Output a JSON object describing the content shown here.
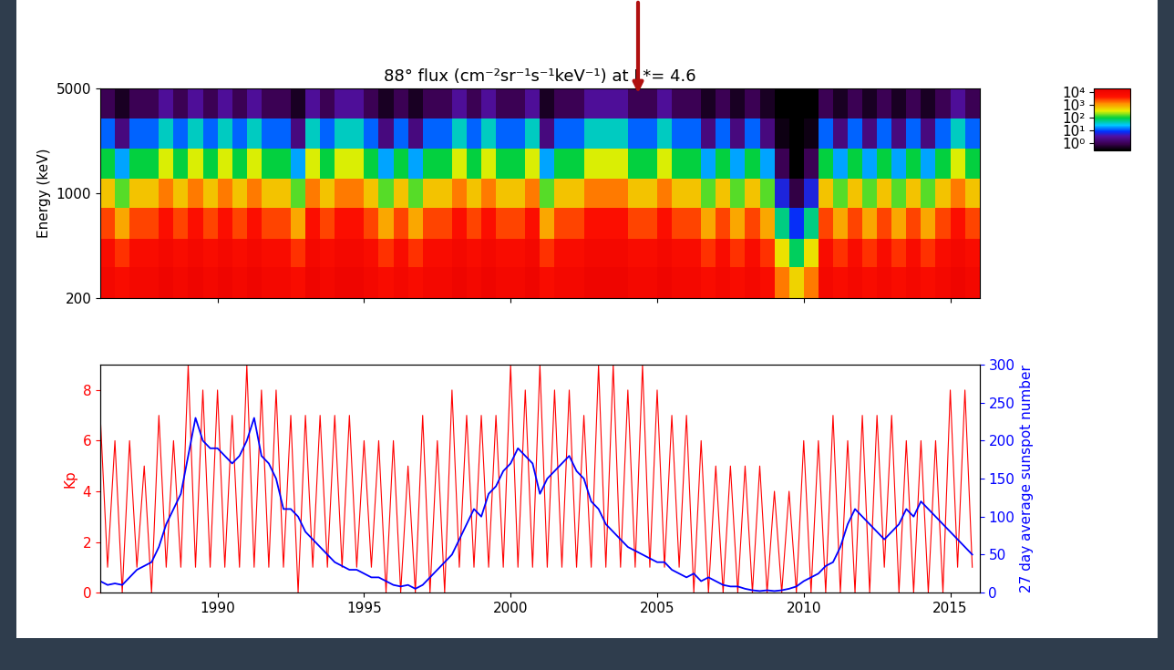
{
  "chart_data": [
    {
      "type": "heatmap",
      "title": "88° flux (cm⁻²sr⁻¹s⁻¹keV⁻¹) at L*= 4.6",
      "ylabel": "Energy (keV)",
      "log": "y",
      "tick_labels": "y",
      "xlim": [
        1986,
        2016
      ],
      "xticks": [
        1990,
        1995,
        2000,
        2005,
        2010,
        2015
      ],
      "ylim": [
        200,
        5000
      ],
      "yticks": [
        200,
        1000,
        5000
      ],
      "x_edges": [
        1986.0,
        1986.5,
        1987.0,
        1987.5,
        1988.0,
        1988.5,
        1989.0,
        1989.5,
        1990.0,
        1990.5,
        1991.0,
        1991.5,
        1992.0,
        1992.5,
        1993.0,
        1993.5,
        1994.0,
        1994.5,
        1995.0,
        1995.5,
        1996.0,
        1996.5,
        1997.0,
        1997.5,
        1998.0,
        1998.5,
        1999.0,
        1999.5,
        2000.0,
        2000.5,
        2001.0,
        2001.5,
        2002.0,
        2002.5,
        2003.0,
        2003.5,
        2004.0,
        2004.5,
        2005.0,
        2005.5,
        2006.0,
        2006.5,
        2007.0,
        2007.5,
        2008.0,
        2008.5,
        2009.0,
        2009.5,
        2010.0,
        2010.5,
        2011.0,
        2011.5,
        2012.0,
        2012.5,
        2013.0,
        2013.5,
        2014.0,
        2014.5,
        2015.0,
        2015.5,
        2016.0
      ],
      "y_edges": [
        200,
        320,
        500,
        800,
        1260,
        2000,
        3160,
        5000
      ],
      "cells": [
        [
          9000,
          6000,
          2500,
          600,
          100,
          12,
          1
        ],
        [
          6000,
          3000,
          900,
          150,
          20,
          2,
          0.5
        ],
        [
          9000,
          6000,
          2500,
          600,
          100,
          12,
          1
        ],
        [
          9000,
          6000,
          2500,
          600,
          100,
          12,
          1
        ],
        [
          12000,
          9000,
          5000,
          1500,
          300,
          40,
          3
        ],
        [
          9000,
          6000,
          2500,
          600,
          100,
          12,
          1
        ],
        [
          12000,
          9000,
          5000,
          1500,
          300,
          40,
          3
        ],
        [
          9000,
          6000,
          2500,
          600,
          100,
          12,
          1
        ],
        [
          12000,
          9000,
          5000,
          1500,
          300,
          40,
          3
        ],
        [
          9000,
          6000,
          2500,
          600,
          100,
          12,
          1
        ],
        [
          12000,
          9000,
          5000,
          1500,
          300,
          40,
          3
        ],
        [
          9000,
          6000,
          2500,
          600,
          100,
          12,
          1
        ],
        [
          9000,
          6000,
          2500,
          600,
          100,
          12,
          1
        ],
        [
          6000,
          3000,
          900,
          150,
          20,
          2,
          0.5
        ],
        [
          12000,
          9000,
          5000,
          1500,
          300,
          40,
          3
        ],
        [
          9000,
          6000,
          2500,
          600,
          100,
          12,
          1
        ],
        [
          12000,
          9000,
          5000,
          1500,
          300,
          40,
          3
        ],
        [
          12000,
          9000,
          5000,
          1500,
          300,
          40,
          3
        ],
        [
          9000,
          6000,
          2500,
          600,
          100,
          12,
          1
        ],
        [
          6000,
          3000,
          900,
          150,
          20,
          2,
          0.5
        ],
        [
          9000,
          6000,
          2500,
          600,
          100,
          12,
          1
        ],
        [
          6000,
          3000,
          900,
          150,
          20,
          2,
          0.5
        ],
        [
          9000,
          6000,
          2500,
          600,
          100,
          12,
          1
        ],
        [
          9000,
          6000,
          2500,
          600,
          100,
          12,
          1
        ],
        [
          12000,
          9000,
          5000,
          1500,
          300,
          40,
          3
        ],
        [
          9000,
          6000,
          2500,
          600,
          100,
          12,
          1
        ],
        [
          12000,
          9000,
          5000,
          1500,
          300,
          40,
          3
        ],
        [
          9000,
          6000,
          2500,
          600,
          100,
          12,
          1
        ],
        [
          9000,
          6000,
          2500,
          600,
          100,
          12,
          1
        ],
        [
          12000,
          9000,
          5000,
          1500,
          300,
          40,
          3
        ],
        [
          6000,
          3000,
          900,
          150,
          20,
          2,
          0.5
        ],
        [
          9000,
          6000,
          2500,
          600,
          100,
          12,
          1
        ],
        [
          9000,
          6000,
          2500,
          600,
          100,
          12,
          1
        ],
        [
          12000,
          9000,
          5000,
          1500,
          300,
          40,
          3
        ],
        [
          12000,
          9000,
          5000,
          1500,
          300,
          40,
          3
        ],
        [
          12000,
          9000,
          5000,
          1500,
          300,
          40,
          3
        ],
        [
          9000,
          6000,
          2500,
          600,
          100,
          12,
          1
        ],
        [
          9000,
          6000,
          2500,
          600,
          100,
          12,
          1
        ],
        [
          12000,
          9000,
          5000,
          1500,
          300,
          40,
          3
        ],
        [
          9000,
          6000,
          2500,
          600,
          100,
          12,
          1
        ],
        [
          9000,
          6000,
          2500,
          600,
          100,
          12,
          1
        ],
        [
          6000,
          3000,
          900,
          150,
          20,
          2,
          0.5
        ],
        [
          9000,
          6000,
          2500,
          600,
          100,
          12,
          1
        ],
        [
          6000,
          3000,
          900,
          150,
          20,
          2,
          0.5
        ],
        [
          9000,
          6000,
          2500,
          600,
          100,
          12,
          1
        ],
        [
          6000,
          3000,
          900,
          150,
          20,
          2,
          0.5
        ],
        [
          1500,
          400,
          60,
          6,
          1,
          0.4,
          0.3
        ],
        [
          500,
          80,
          8,
          0.8,
          0.3,
          0.3,
          0.3
        ],
        [
          1500,
          400,
          60,
          6,
          1,
          0.4,
          0.3
        ],
        [
          9000,
          6000,
          2500,
          600,
          100,
          12,
          1
        ],
        [
          6000,
          3000,
          900,
          150,
          20,
          2,
          0.5
        ],
        [
          9000,
          6000,
          2500,
          600,
          100,
          12,
          1
        ],
        [
          6000,
          3000,
          900,
          150,
          20,
          2,
          0.5
        ],
        [
          9000,
          6000,
          2500,
          600,
          100,
          12,
          1
        ],
        [
          6000,
          3000,
          900,
          150,
          20,
          2,
          0.5
        ],
        [
          9000,
          6000,
          2500,
          600,
          100,
          12,
          1
        ],
        [
          6000,
          3000,
          900,
          150,
          20,
          2,
          0.5
        ],
        [
          9000,
          6000,
          2500,
          600,
          100,
          12,
          1
        ],
        [
          12000,
          9000,
          5000,
          1500,
          300,
          40,
          3
        ],
        [
          9000,
          6000,
          2500,
          600,
          100,
          12,
          1
        ]
      ],
      "colorbar_lim": [
        0.3,
        20000
      ],
      "colorbar_ticks": [
        {
          "value": 1,
          "label": "10⁰"
        },
        {
          "value": 10,
          "label": "10¹"
        },
        {
          "value": 100,
          "label": "10²"
        },
        {
          "value": 1000,
          "label": "10³"
        },
        {
          "value": 10000,
          "label": "10⁴"
        }
      ]
    },
    {
      "type": "line",
      "xlim": [
        1986,
        2016
      ],
      "xticks": [
        1990,
        1995,
        2000,
        2005,
        2010,
        2015
      ],
      "ylim": [
        0,
        9
      ],
      "yticks": [
        0,
        2,
        4,
        6,
        8
      ],
      "y2lim": [
        0,
        300
      ],
      "y2ticks": [
        0,
        50,
        100,
        150,
        200,
        250,
        300
      ],
      "x": [
        1986.0,
        1986.25,
        1986.5,
        1986.75,
        1987.0,
        1987.25,
        1987.5,
        1987.75,
        1988.0,
        1988.25,
        1988.5,
        1988.75,
        1989.0,
        1989.25,
        1989.5,
        1989.75,
        1990.0,
        1990.25,
        1990.5,
        1990.75,
        1991.0,
        1991.25,
        1991.5,
        1991.75,
        1992.0,
        1992.25,
        1992.5,
        1992.75,
        1993.0,
        1993.25,
        1993.5,
        1993.75,
        1994.0,
        1994.25,
        1994.5,
        1994.75,
        1995.0,
        1995.25,
        1995.5,
        1995.75,
        1996.0,
        1996.25,
        1996.5,
        1996.75,
        1997.0,
        1997.25,
        1997.5,
        1997.75,
        1998.0,
        1998.25,
        1998.5,
        1998.75,
        1999.0,
        1999.25,
        1999.5,
        1999.75,
        2000.0,
        2000.25,
        2000.5,
        2000.75,
        2001.0,
        2001.25,
        2001.5,
        2001.75,
        2002.0,
        2002.25,
        2002.5,
        2002.75,
        2003.0,
        2003.25,
        2003.5,
        2003.75,
        2004.0,
        2004.25,
        2004.5,
        2004.75,
        2005.0,
        2005.25,
        2005.5,
        2005.75,
        2006.0,
        2006.25,
        2006.5,
        2006.75,
        2007.0,
        2007.25,
        2007.5,
        2007.75,
        2008.0,
        2008.25,
        2008.5,
        2008.75,
        2009.0,
        2009.25,
        2009.5,
        2009.75,
        2010.0,
        2010.25,
        2010.5,
        2010.75,
        2011.0,
        2011.25,
        2011.5,
        2011.75,
        2012.0,
        2012.25,
        2012.5,
        2012.75,
        2013.0,
        2013.25,
        2013.5,
        2013.75,
        2014.0,
        2014.25,
        2014.5,
        2014.75,
        2015.0,
        2015.25,
        2015.5,
        2015.75
      ],
      "series": [
        {
          "name": "Kp",
          "color": "#ff0000",
          "values": [
            7,
            1,
            6,
            0,
            6,
            1,
            5,
            0,
            7,
            1,
            6,
            1,
            9,
            1,
            8,
            1,
            8,
            1,
            7,
            1,
            9,
            1,
            8,
            1,
            8,
            1,
            7,
            0,
            7,
            1,
            7,
            1,
            7,
            1,
            7,
            1,
            6,
            1,
            6,
            0,
            6,
            0,
            5,
            0,
            7,
            0,
            6,
            0,
            8,
            1,
            7,
            1,
            7,
            1,
            7,
            1,
            9,
            1,
            8,
            1,
            9,
            1,
            8,
            1,
            8,
            1,
            7,
            1,
            9,
            1,
            9,
            1,
            8,
            1,
            9,
            1,
            8,
            1,
            7,
            1,
            7,
            0,
            6,
            0,
            5,
            0,
            5,
            0,
            5,
            0,
            5,
            0,
            4,
            0,
            4,
            0,
            6,
            0,
            6,
            0,
            7,
            0,
            6,
            0,
            7,
            0,
            7,
            1,
            7,
            0,
            6,
            0,
            6,
            0,
            6,
            0,
            8,
            1,
            8,
            1
          ]
        },
        {
          "name": "27 day average sunspot number",
          "color": "#0000ff",
          "axis": "y2",
          "values": [
            15,
            10,
            12,
            10,
            20,
            30,
            35,
            40,
            60,
            90,
            110,
            130,
            180,
            230,
            200,
            190,
            190,
            180,
            170,
            180,
            200,
            230,
            180,
            170,
            150,
            110,
            110,
            100,
            80,
            70,
            60,
            50,
            40,
            35,
            30,
            30,
            25,
            20,
            20,
            15,
            10,
            8,
            10,
            5,
            10,
            20,
            30,
            40,
            50,
            70,
            90,
            110,
            100,
            130,
            140,
            160,
            170,
            190,
            180,
            170,
            130,
            150,
            160,
            170,
            180,
            160,
            150,
            120,
            110,
            90,
            80,
            70,
            60,
            55,
            50,
            45,
            40,
            40,
            30,
            25,
            20,
            25,
            15,
            20,
            15,
            10,
            8,
            8,
            5,
            3,
            2,
            3,
            2,
            3,
            5,
            8,
            15,
            20,
            25,
            35,
            40,
            60,
            90,
            110,
            100,
            90,
            80,
            70,
            80,
            90,
            110,
            100,
            120,
            110,
            100,
            90,
            80,
            70,
            60,
            50
          ]
        }
      ]
    }
  ]
}
